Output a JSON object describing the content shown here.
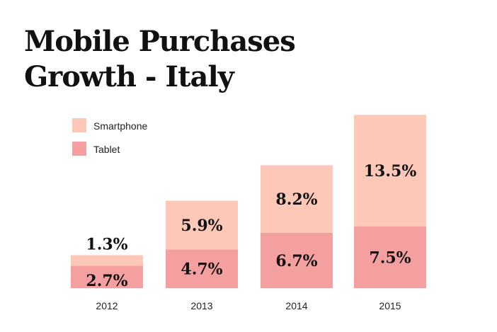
{
  "chart_data": {
    "type": "bar",
    "stacked": true,
    "title_lines": [
      "Mobile Purchases",
      "Growth - Italy"
    ],
    "categories": [
      "2012",
      "2013",
      "2014",
      "2015"
    ],
    "series": [
      {
        "name": "Tablet",
        "values": [
          2.7,
          4.7,
          6.7,
          7.5
        ],
        "labels": [
          "2.7%",
          "4.7%",
          "6.7%",
          "7.5%"
        ],
        "color": "#f4a0a0"
      },
      {
        "name": "Smartphone",
        "values": [
          1.3,
          5.9,
          8.2,
          13.5
        ],
        "labels": [
          "1.3%",
          "5.9%",
          "8.2%",
          "13.5%"
        ],
        "color": "#fec8b8"
      }
    ],
    "legend_position": "top-left",
    "ylim": [
      0,
      21
    ],
    "grid": false,
    "xlabel": "",
    "ylabel": ""
  }
}
